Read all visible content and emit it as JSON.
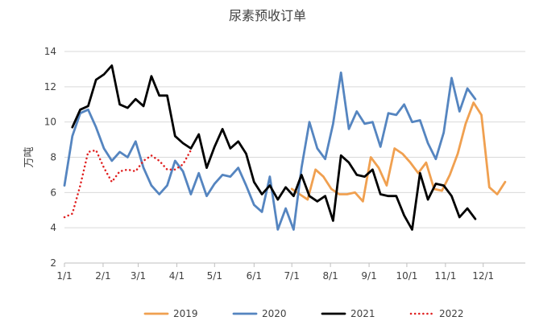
{
  "chart_data": {
    "type": "line",
    "title": "尿素预收订单",
    "xlabel": "",
    "ylabel": "万吨",
    "ylim": [
      2,
      14
    ],
    "yticks": [
      2,
      4,
      6,
      8,
      10,
      12,
      14
    ],
    "xticks": [
      {
        "label": "1/1",
        "x": 0
      },
      {
        "label": "2/1",
        "x": 4.4
      },
      {
        "label": "3/1",
        "x": 8.4
      },
      {
        "label": "4/1",
        "x": 12.8
      },
      {
        "label": "5/1",
        "x": 17.1
      },
      {
        "label": "6/1",
        "x": 21.6
      },
      {
        "label": "7/1",
        "x": 25.9
      },
      {
        "label": "8/1",
        "x": 30.3
      },
      {
        "label": "9/1",
        "x": 34.7
      },
      {
        "label": "10/1",
        "x": 39.0
      },
      {
        "label": "11/1",
        "x": 43.4
      },
      {
        "label": "12/1",
        "x": 47.7
      }
    ],
    "xlim": [
      0,
      52.5
    ],
    "grid": "horizontal",
    "legend": "bottom",
    "series": [
      {
        "name": "2019",
        "color": "#F0A050",
        "style": "solid",
        "points": [
          [
            25.9,
            6.2
          ],
          [
            26.8,
            5.9
          ],
          [
            27.7,
            5.6
          ],
          [
            28.6,
            7.3
          ],
          [
            29.5,
            6.9
          ],
          [
            30.4,
            6.2
          ],
          [
            31.3,
            5.9
          ],
          [
            32.2,
            5.9
          ],
          [
            33.1,
            6.0
          ],
          [
            34.0,
            5.5
          ],
          [
            34.9,
            8.0
          ],
          [
            35.8,
            7.4
          ],
          [
            36.7,
            6.4
          ],
          [
            37.6,
            8.5
          ],
          [
            38.5,
            8.2
          ],
          [
            39.4,
            7.7
          ],
          [
            40.3,
            7.1
          ],
          [
            41.2,
            7.7
          ],
          [
            42.1,
            6.2
          ],
          [
            43.0,
            6.1
          ],
          [
            43.9,
            7.0
          ],
          [
            44.8,
            8.2
          ],
          [
            45.7,
            9.9
          ],
          [
            46.6,
            11.1
          ],
          [
            47.5,
            10.4
          ],
          [
            48.4,
            6.3
          ],
          [
            49.3,
            5.9
          ],
          [
            50.2,
            6.6
          ]
        ]
      },
      {
        "name": "2020",
        "color": "#5585C0",
        "style": "solid",
        "points": [
          [
            0,
            6.4
          ],
          [
            0.9,
            9.2
          ],
          [
            1.8,
            10.5
          ],
          [
            2.7,
            10.7
          ],
          [
            3.6,
            9.7
          ],
          [
            4.5,
            8.5
          ],
          [
            5.4,
            7.8
          ],
          [
            6.3,
            8.3
          ],
          [
            7.2,
            8.0
          ],
          [
            8.1,
            8.9
          ],
          [
            9.0,
            7.4
          ],
          [
            9.9,
            6.4
          ],
          [
            10.8,
            5.9
          ],
          [
            11.7,
            6.4
          ],
          [
            12.6,
            7.8
          ],
          [
            13.5,
            7.2
          ],
          [
            14.4,
            5.9
          ],
          [
            15.3,
            7.1
          ],
          [
            16.2,
            5.8
          ],
          [
            17.1,
            6.5
          ],
          [
            18.0,
            7.0
          ],
          [
            18.9,
            6.9
          ],
          [
            19.8,
            7.4
          ],
          [
            20.7,
            6.4
          ],
          [
            21.6,
            5.3
          ],
          [
            22.5,
            4.9
          ],
          [
            23.4,
            6.9
          ],
          [
            24.3,
            3.9
          ],
          [
            25.2,
            5.1
          ],
          [
            26.1,
            3.9
          ],
          [
            27.0,
            7.4
          ],
          [
            27.9,
            10.0
          ],
          [
            28.8,
            8.5
          ],
          [
            29.7,
            7.9
          ],
          [
            30.6,
            9.9
          ],
          [
            31.5,
            12.8
          ],
          [
            32.4,
            9.6
          ],
          [
            33.3,
            10.6
          ],
          [
            34.2,
            9.9
          ],
          [
            35.1,
            10.0
          ],
          [
            36.0,
            8.6
          ],
          [
            36.9,
            10.5
          ],
          [
            37.8,
            10.4
          ],
          [
            38.7,
            11.0
          ],
          [
            39.6,
            10.0
          ],
          [
            40.5,
            10.1
          ],
          [
            41.4,
            8.8
          ],
          [
            42.3,
            7.9
          ],
          [
            43.2,
            9.4
          ],
          [
            44.1,
            12.5
          ],
          [
            45.0,
            10.6
          ],
          [
            45.9,
            11.9
          ],
          [
            46.8,
            11.3
          ]
        ]
      },
      {
        "name": "2021",
        "color": "#000000",
        "style": "solid",
        "points": [
          [
            0.9,
            9.7
          ],
          [
            1.8,
            10.7
          ],
          [
            2.7,
            10.9
          ],
          [
            3.6,
            12.4
          ],
          [
            4.5,
            12.7
          ],
          [
            5.4,
            13.2
          ],
          [
            6.3,
            11.0
          ],
          [
            7.2,
            10.8
          ],
          [
            8.1,
            11.3
          ],
          [
            9.0,
            10.9
          ],
          [
            9.9,
            12.6
          ],
          [
            10.8,
            11.5
          ],
          [
            11.7,
            11.5
          ],
          [
            12.6,
            9.2
          ],
          [
            13.5,
            8.8
          ],
          [
            14.4,
            8.5
          ],
          [
            15.3,
            9.3
          ],
          [
            16.2,
            7.4
          ],
          [
            17.1,
            8.6
          ],
          [
            18.0,
            9.6
          ],
          [
            18.9,
            8.5
          ],
          [
            19.8,
            8.9
          ],
          [
            20.7,
            8.2
          ],
          [
            21.6,
            6.6
          ],
          [
            22.5,
            5.9
          ],
          [
            23.4,
            6.4
          ],
          [
            24.3,
            5.6
          ],
          [
            25.2,
            6.3
          ],
          [
            26.1,
            5.8
          ],
          [
            27.0,
            7.0
          ],
          [
            27.9,
            5.8
          ],
          [
            28.8,
            5.5
          ],
          [
            29.7,
            5.8
          ],
          [
            30.6,
            4.4
          ],
          [
            31.5,
            8.1
          ],
          [
            32.4,
            7.7
          ],
          [
            33.3,
            7.0
          ],
          [
            34.2,
            6.9
          ],
          [
            35.1,
            7.3
          ],
          [
            36.0,
            5.9
          ],
          [
            36.9,
            5.8
          ],
          [
            37.8,
            5.8
          ],
          [
            38.7,
            4.7
          ],
          [
            39.6,
            3.9
          ],
          [
            40.5,
            7.1
          ],
          [
            41.4,
            5.6
          ],
          [
            42.3,
            6.5
          ],
          [
            43.2,
            6.4
          ],
          [
            44.1,
            5.8
          ],
          [
            45.0,
            4.6
          ],
          [
            45.9,
            5.1
          ],
          [
            46.8,
            4.5
          ]
        ]
      },
      {
        "name": "2022",
        "color": "#E02020",
        "style": "dotted",
        "points": [
          [
            0,
            4.6
          ],
          [
            0.9,
            4.8
          ],
          [
            1.8,
            6.4
          ],
          [
            2.7,
            8.3
          ],
          [
            3.6,
            8.4
          ],
          [
            4.5,
            7.4
          ],
          [
            5.4,
            6.6
          ],
          [
            6.3,
            7.2
          ],
          [
            7.2,
            7.3
          ],
          [
            8.1,
            7.2
          ],
          [
            9.0,
            7.8
          ],
          [
            9.9,
            8.1
          ],
          [
            10.8,
            7.8
          ],
          [
            11.7,
            7.3
          ],
          [
            12.6,
            7.3
          ],
          [
            13.5,
            7.6
          ],
          [
            14.4,
            8.4
          ]
        ]
      }
    ]
  }
}
